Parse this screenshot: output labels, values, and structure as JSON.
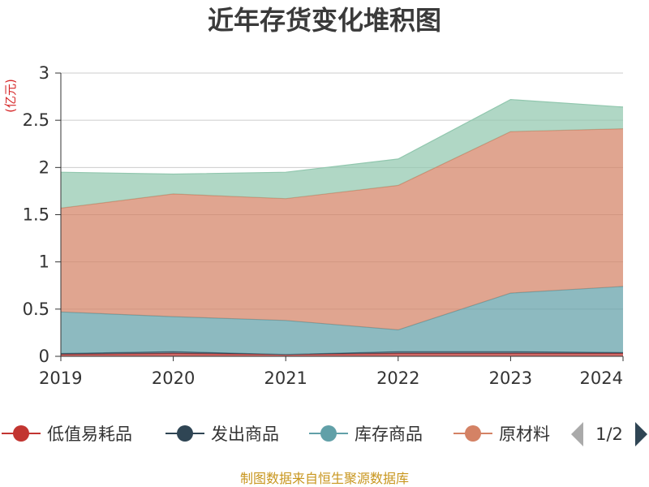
{
  "chart_data": {
    "type": "area",
    "stacked": true,
    "title": "近年存货变化堆积图",
    "unit_label": "(亿元)",
    "x": [
      "2019",
      "2020",
      "2021",
      "2022",
      "2023",
      "2024"
    ],
    "ylim": [
      0,
      3
    ],
    "yticks": [
      "0",
      "0.5",
      "1",
      "1.5",
      "2",
      "2.5",
      "3"
    ],
    "grid": true,
    "legend_position": "bottom",
    "series": [
      {
        "name": "低值易耗品",
        "color": "#c23531",
        "values": [
          0.02,
          0.03,
          0.02,
          0.03,
          0.03,
          0.03
        ]
      },
      {
        "name": "发出商品",
        "color": "#2f4554",
        "values": [
          0.01,
          0.02,
          0.0,
          0.02,
          0.02,
          0.01
        ]
      },
      {
        "name": "库存商品",
        "color": "#61a0a8",
        "values": [
          0.44,
          0.37,
          0.36,
          0.23,
          0.62,
          0.7
        ]
      },
      {
        "name": "原材料",
        "color": "#d48265",
        "values": [
          1.1,
          1.3,
          1.29,
          1.53,
          1.71,
          1.67
        ]
      },
      {
        "name": "",
        "color": "#91c7ae",
        "values": [
          0.38,
          0.21,
          0.28,
          0.28,
          0.34,
          0.23
        ]
      }
    ],
    "legend_visible": [
      "低值易耗品",
      "发出商品",
      "库存商品",
      "原材料"
    ],
    "legend_truncated_label": "原材料",
    "pager": "1/2"
  },
  "footer": {
    "source": "制图数据来自恒生聚源数据库"
  },
  "icons": {
    "prev": "triangle-left-icon",
    "next": "triangle-right-icon"
  }
}
